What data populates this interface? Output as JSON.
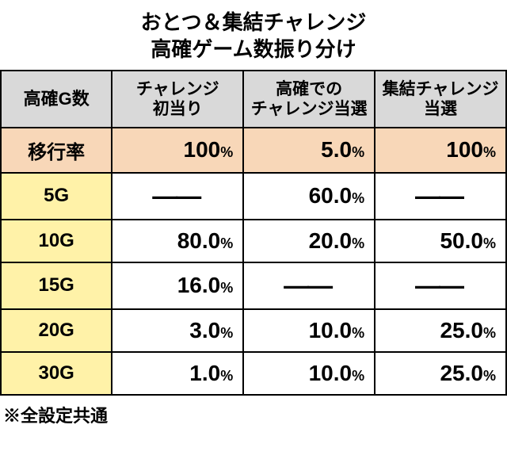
{
  "title_line1": "おとつ＆集結チャレンジ",
  "title_line2": "高確ゲーム数振り分け",
  "headers": {
    "row_label": "高確G数",
    "col1_line1": "チャレンジ",
    "col1_line2": "初当り",
    "col2_line1": "高確での",
    "col2_line2": "チャレンジ当選",
    "col3_line1": "集結チャレンジ",
    "col3_line2": "当選"
  },
  "rate_row": {
    "label": "移行率",
    "values": [
      "100",
      "5.0",
      "100"
    ]
  },
  "rows": [
    {
      "label": "5G",
      "values": [
        null,
        "60.0",
        null
      ]
    },
    {
      "label": "10G",
      "values": [
        "80.0",
        "20.0",
        "50.0"
      ]
    },
    {
      "label": "15G",
      "values": [
        "16.0",
        null,
        null
      ]
    },
    {
      "label": "20G",
      "values": [
        "3.0",
        "10.0",
        "25.0"
      ]
    },
    {
      "label": "30G",
      "values": [
        "1.0",
        "10.0",
        "25.0"
      ]
    }
  ],
  "footnote": "※全設定共通",
  "pct_symbol": "%",
  "dash": "——",
  "colors": {
    "header_bg": "#d9d9d9",
    "rate_bg": "#f8d7b8",
    "label_bg": "#fff2a8",
    "border": "#000000",
    "background": "#ffffff"
  },
  "col_widths": [
    "22%",
    "26%",
    "26%",
    "26%"
  ]
}
